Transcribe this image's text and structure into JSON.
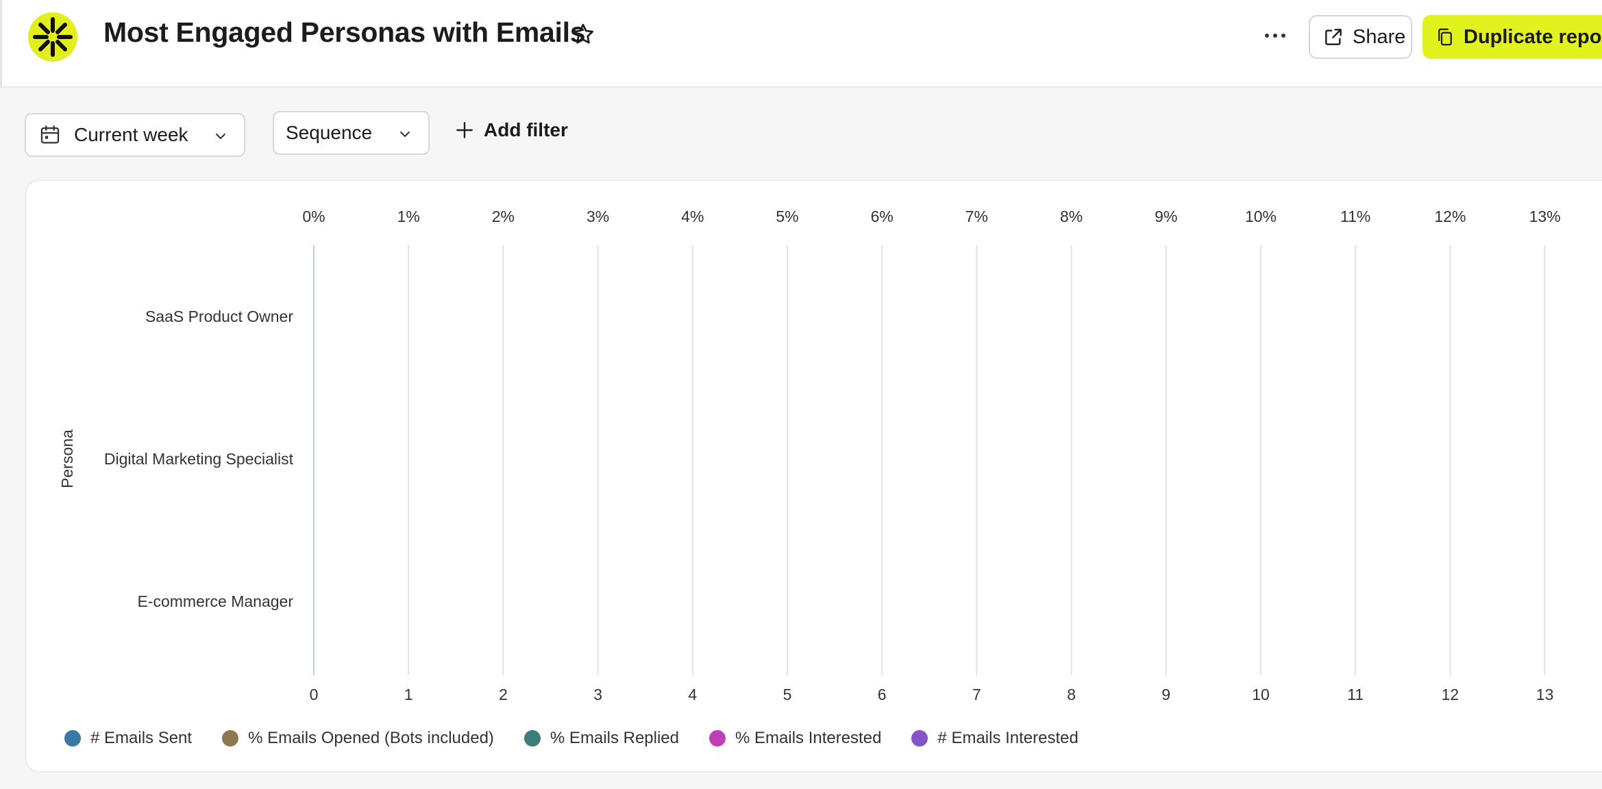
{
  "header": {
    "title": "Most Engaged Personas with Emails",
    "share_label": "Share",
    "duplicate_label": "Duplicate report",
    "accent_color": "#e2f21f"
  },
  "filters": {
    "date_range": "Current week",
    "sequence": "Sequence",
    "add_filter_label": "Add filter"
  },
  "chart_data": {
    "type": "bar",
    "orientation": "horizontal",
    "y_axis_label": "Persona",
    "categories": [
      "SaaS Product Owner",
      "Digital Marketing Specialist",
      "E-commerce Manager"
    ],
    "top_axis_ticks": [
      "0%",
      "1%",
      "2%",
      "3%",
      "4%",
      "5%",
      "6%",
      "7%",
      "8%",
      "9%",
      "10%",
      "11%",
      "12%",
      "13%"
    ],
    "bottom_axis_ticks": [
      "0",
      "1",
      "2",
      "3",
      "4",
      "5",
      "6",
      "7",
      "8",
      "9",
      "10",
      "11",
      "12",
      "13"
    ],
    "xlim": [
      0,
      13
    ],
    "grid": true,
    "legend_position": "bottom-left",
    "series": [
      {
        "name": "# Emails Sent",
        "color": "#3a78a8",
        "values": [
          0,
          0,
          0
        ]
      },
      {
        "name": "% Emails Opened (Bots included)",
        "color": "#8c7a4e",
        "values": [
          0,
          0,
          0
        ]
      },
      {
        "name": "% Emails Replied",
        "color": "#3e7c7c",
        "values": [
          0,
          0,
          0
        ]
      },
      {
        "name": "% Emails Interested",
        "color": "#c13fb6",
        "values": [
          0,
          0,
          0
        ]
      },
      {
        "name": "# Emails Interested",
        "color": "#8455c8",
        "values": [
          0,
          0,
          0
        ]
      }
    ]
  }
}
